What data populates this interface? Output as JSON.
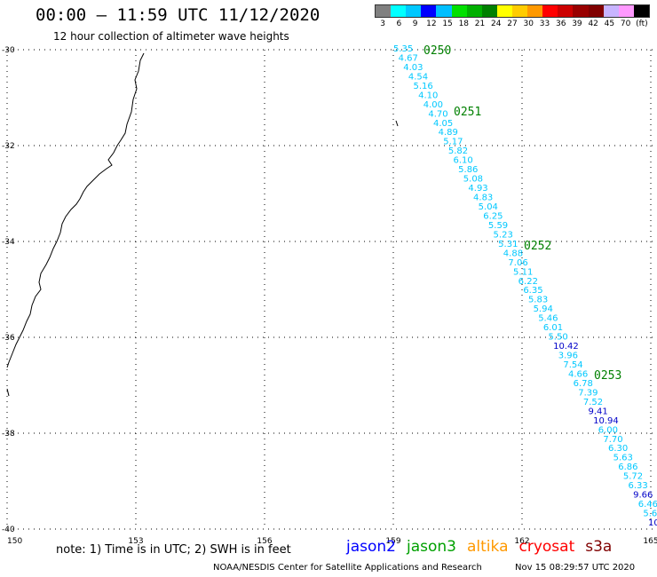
{
  "header": {
    "title": "00:00 – 11:59 UTC 11/12/2020",
    "subtitle": "12 hour collection of altimeter wave heights"
  },
  "legend": {
    "colors": [
      "#808080",
      "#00ffff",
      "#00c8ff",
      "#0000ff",
      "#00bfff",
      "#00e000",
      "#00b000",
      "#008000",
      "#ffff00",
      "#ffcc00",
      "#ff9900",
      "#ff0000",
      "#cc0000",
      "#990000",
      "#800000",
      "#c8b4ff",
      "#ff99ff",
      "#000000"
    ],
    "labels": [
      "3",
      "6",
      "9",
      "12",
      "15",
      "18",
      "21",
      "24",
      "27",
      "30",
      "33",
      "36",
      "39",
      "42",
      "45",
      "70",
      "(ft)"
    ]
  },
  "axes": {
    "lat_labels": [
      "-30",
      "-32",
      "-34",
      "-36",
      "-38",
      "-40"
    ],
    "lon_labels": [
      "150",
      "153",
      "156",
      "159",
      "162",
      "165"
    ]
  },
  "tracks": [
    {
      "time": "0250",
      "color": "#008000"
    },
    {
      "time": "0251",
      "color": "#008000"
    },
    {
      "time": "0252",
      "color": "#008000"
    },
    {
      "time": "0253",
      "color": "#008000"
    }
  ],
  "points": [
    {
      "v": "5.35",
      "c": "#00c8ff"
    },
    {
      "v": "4.67",
      "c": "#00c8ff"
    },
    {
      "v": "4.03",
      "c": "#00c8ff"
    },
    {
      "v": "4.54",
      "c": "#00c8ff"
    },
    {
      "v": "5.16",
      "c": "#00c8ff"
    },
    {
      "v": "4.10",
      "c": "#00c8ff"
    },
    {
      "v": "4.00",
      "c": "#00c8ff"
    },
    {
      "v": "4.70",
      "c": "#00c8ff"
    },
    {
      "v": "4.05",
      "c": "#00c8ff"
    },
    {
      "v": "4.89",
      "c": "#00c8ff"
    },
    {
      "v": "5.17",
      "c": "#00c8ff"
    },
    {
      "v": "5.82",
      "c": "#00c8ff"
    },
    {
      "v": "6.10",
      "c": "#00c8ff"
    },
    {
      "v": "5.86",
      "c": "#00c8ff"
    },
    {
      "v": "5.08",
      "c": "#00c8ff"
    },
    {
      "v": "4.93",
      "c": "#00c8ff"
    },
    {
      "v": "4.83",
      "c": "#00c8ff"
    },
    {
      "v": "5.04",
      "c": "#00c8ff"
    },
    {
      "v": "6.25",
      "c": "#00c8ff"
    },
    {
      "v": "5.59",
      "c": "#00c8ff"
    },
    {
      "v": "5.23",
      "c": "#00c8ff"
    },
    {
      "v": "5.31",
      "c": "#00c8ff"
    },
    {
      "v": "4.88",
      "c": "#00c8ff"
    },
    {
      "v": "7.06",
      "c": "#00c8ff"
    },
    {
      "v": "5.11",
      "c": "#00c8ff"
    },
    {
      "v": "6.22",
      "c": "#00c8ff"
    },
    {
      "v": "6.35",
      "c": "#00c8ff"
    },
    {
      "v": "5.83",
      "c": "#00c8ff"
    },
    {
      "v": "5.94",
      "c": "#00c8ff"
    },
    {
      "v": "5.46",
      "c": "#00c8ff"
    },
    {
      "v": "6.01",
      "c": "#00c8ff"
    },
    {
      "v": "5.50",
      "c": "#00c8ff"
    },
    {
      "v": "10.42",
      "c": "#0000c8"
    },
    {
      "v": "3.96",
      "c": "#00c8ff"
    },
    {
      "v": "7.54",
      "c": "#00c8ff"
    },
    {
      "v": "4.66",
      "c": "#00c8ff"
    },
    {
      "v": "6.78",
      "c": "#00c8ff"
    },
    {
      "v": "7.39",
      "c": "#00c8ff"
    },
    {
      "v": "7.52",
      "c": "#00c8ff"
    },
    {
      "v": "9.41",
      "c": "#0000c8"
    },
    {
      "v": "10.94",
      "c": "#0000c8"
    },
    {
      "v": "6.00",
      "c": "#00c8ff"
    },
    {
      "v": "7.70",
      "c": "#00c8ff"
    },
    {
      "v": "6.30",
      "c": "#00c8ff"
    },
    {
      "v": "5.63",
      "c": "#00c8ff"
    },
    {
      "v": "6.86",
      "c": "#00c8ff"
    },
    {
      "v": "5.72",
      "c": "#00c8ff"
    },
    {
      "v": "6.33",
      "c": "#00c8ff"
    },
    {
      "v": "9.66",
      "c": "#0000c8"
    },
    {
      "v": "6.46",
      "c": "#00c8ff"
    },
    {
      "v": "5.6",
      "c": "#00c8ff"
    },
    {
      "v": "10",
      "c": "#0000c8"
    }
  ],
  "footer": {
    "note": "note: 1) Time is in UTC; 2) SWH is in feet",
    "satellites": [
      {
        "name": "jason2",
        "color": "#0000ff"
      },
      {
        "name": "jason3",
        "color": "#00a000"
      },
      {
        "name": "altika",
        "color": "#ff9900"
      },
      {
        "name": "cryosat",
        "color": "#ff0000"
      },
      {
        "name": "s3a",
        "color": "#800000"
      }
    ],
    "credit": "NOAA/NESDIS Center for Satellite Applications and Research",
    "timestamp": "Nov 15 08:29:57 UTC 2020"
  }
}
